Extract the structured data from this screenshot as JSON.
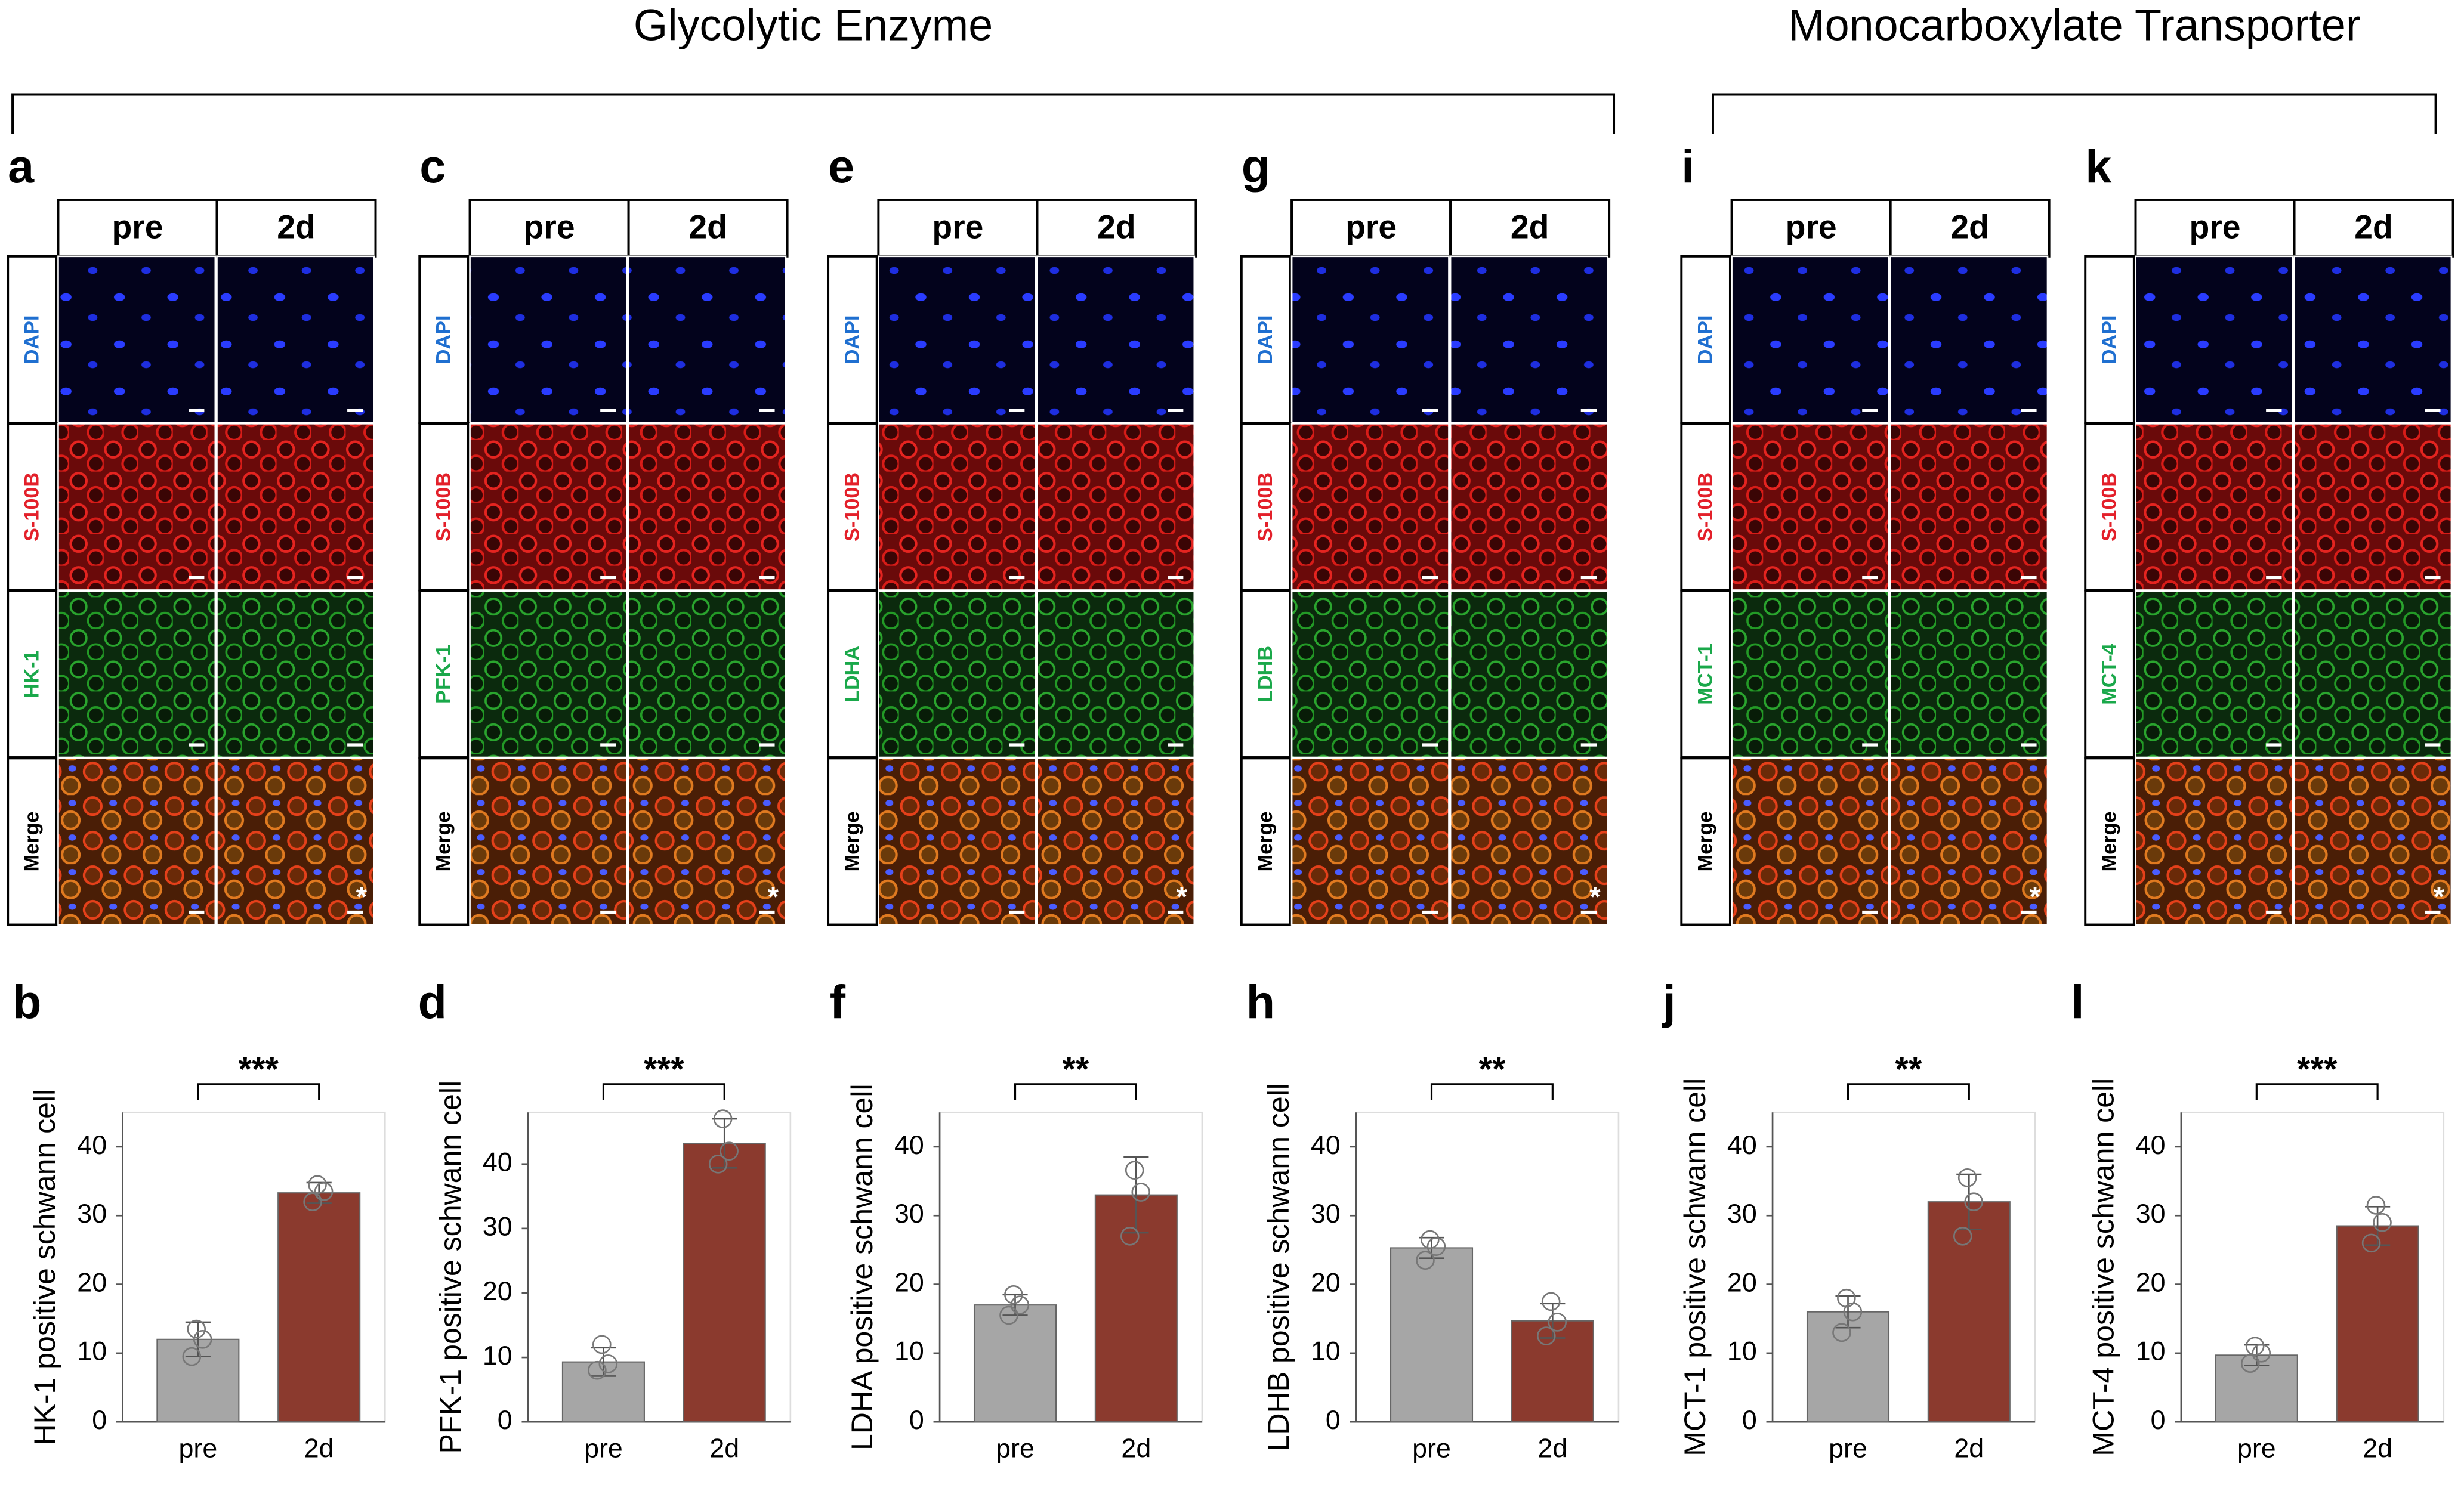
{
  "headings": [
    "Glycolytic Enzyme",
    "Monocarboxylate Transporter"
  ],
  "row_colors": [
    "#1f6fd0",
    "#e3202a",
    "#1aa84a",
    "#000000"
  ],
  "image_panels": [
    {
      "label": "a",
      "columns": [
        "pre",
        "2d"
      ],
      "rows": [
        "DAPI",
        "S-100B",
        "HK-1",
        "Merge"
      ],
      "corner_mark": "*"
    },
    {
      "label": "c",
      "columns": [
        "pre",
        "2d"
      ],
      "rows": [
        "DAPI",
        "S-100B",
        "PFK-1",
        "Merge"
      ],
      "corner_mark": "*"
    },
    {
      "label": "e",
      "columns": [
        "pre",
        "2d"
      ],
      "rows": [
        "DAPI",
        "S-100B",
        "LDHA",
        "Merge"
      ],
      "corner_mark": "*"
    },
    {
      "label": "g",
      "columns": [
        "pre",
        "2d"
      ],
      "rows": [
        "DAPI",
        "S-100B",
        "LDHB",
        "Merge"
      ],
      "corner_mark": "*"
    },
    {
      "label": "i",
      "columns": [
        "pre",
        "2d"
      ],
      "rows": [
        "DAPI",
        "S-100B",
        "MCT-1",
        "Merge"
      ],
      "corner_mark": "*"
    },
    {
      "label": "k",
      "columns": [
        "pre",
        "2d"
      ],
      "rows": [
        "DAPI",
        "S-100B",
        "MCT-4",
        "Merge"
      ],
      "corner_mark": "*"
    }
  ],
  "chart_data": [
    {
      "type": "bar",
      "panel_label": "b",
      "ylabel": "HK-1 positive schwann cell",
      "categories": [
        "pre",
        "2d"
      ],
      "values": [
        12,
        33.3
      ],
      "errors": [
        2.5,
        1.5
      ],
      "points": [
        [
          9.5,
          12,
          13.5
        ],
        [
          32,
          33.5,
          34.5
        ]
      ],
      "colors": [
        "#a6a6a6",
        "#8b3a2e"
      ],
      "significance": "***",
      "ylim": [
        0,
        45
      ],
      "yticks": [
        0,
        10,
        20,
        30,
        40
      ]
    },
    {
      "type": "bar",
      "panel_label": "d",
      "ylabel": "PFK-1 positive schwann cell",
      "categories": [
        "pre",
        "2d"
      ],
      "values": [
        9.3,
        43.2
      ],
      "errors": [
        2.2,
        3.8
      ],
      "points": [
        [
          8,
          9,
          12
        ],
        [
          40,
          42,
          47
        ]
      ],
      "colors": [
        "#a6a6a6",
        "#8b3a2e"
      ],
      "significance": "***",
      "ylim": [
        0,
        48
      ],
      "yticks": [
        0,
        10,
        20,
        30,
        40
      ]
    },
    {
      "type": "bar",
      "panel_label": "f",
      "ylabel": "LDHA positive schwann cell",
      "categories": [
        "pre",
        "2d"
      ],
      "values": [
        17,
        33
      ],
      "errors": [
        1.5,
        5.5
      ],
      "points": [
        [
          15.5,
          17,
          18.5
        ],
        [
          27,
          33.4,
          36.6
        ]
      ],
      "colors": [
        "#a6a6a6",
        "#8b3a2e"
      ],
      "significance": "**",
      "ylim": [
        0,
        45
      ],
      "yticks": [
        0,
        10,
        20,
        30,
        40
      ]
    },
    {
      "type": "bar",
      "panel_label": "h",
      "ylabel": "LDHB positive schwann cell",
      "categories": [
        "pre",
        "2d"
      ],
      "values": [
        25.3,
        14.7
      ],
      "errors": [
        1.5,
        2.5
      ],
      "points": [
        [
          23.5,
          25.5,
          26.5
        ],
        [
          12.5,
          14.5,
          17.5
        ]
      ],
      "colors": [
        "#a6a6a6",
        "#8b3a2e"
      ],
      "significance": "**",
      "ylim": [
        0,
        45
      ],
      "yticks": [
        0,
        10,
        20,
        30,
        40
      ]
    },
    {
      "type": "bar",
      "panel_label": "j",
      "ylabel": "MCT-1 positive schwann cell",
      "categories": [
        "pre",
        "2d"
      ],
      "values": [
        16,
        32
      ],
      "errors": [
        2.3,
        4
      ],
      "points": [
        [
          13,
          16,
          18
        ],
        [
          27,
          32,
          35.5
        ]
      ],
      "colors": [
        "#a6a6a6",
        "#8b3a2e"
      ],
      "significance": "**",
      "ylim": [
        0,
        45
      ],
      "yticks": [
        0,
        10,
        20,
        30,
        40
      ]
    },
    {
      "type": "bar",
      "panel_label": "l",
      "ylabel": "MCT-4 positive schwann cell",
      "categories": [
        "pre",
        "2d"
      ],
      "values": [
        9.7,
        28.5
      ],
      "errors": [
        1.5,
        2.8
      ],
      "points": [
        [
          8.5,
          10,
          11
        ],
        [
          26,
          29,
          31.5
        ]
      ],
      "colors": [
        "#a6a6a6",
        "#8b3a2e"
      ],
      "significance": "***",
      "ylim": [
        0,
        45
      ],
      "yticks": [
        0,
        10,
        20,
        30,
        40
      ]
    }
  ]
}
